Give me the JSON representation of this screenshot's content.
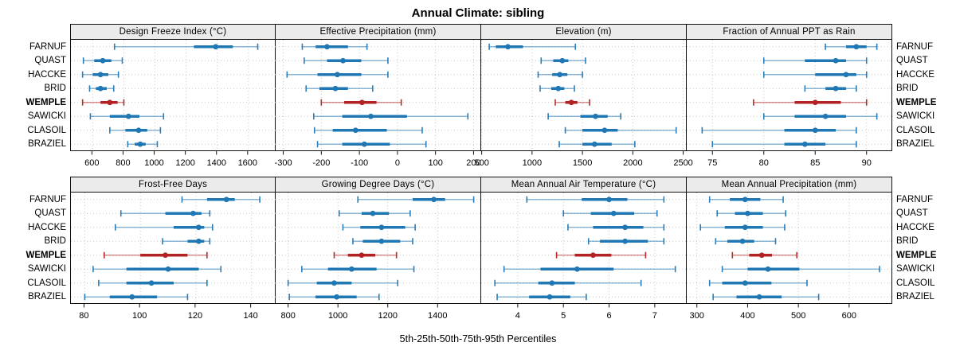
{
  "title": "Annual Climate: sibling",
  "footer": "5th-25th-50th-75th-95th Percentiles",
  "stations": [
    "FARNUF",
    "QUAST",
    "HACCKE",
    "BRID",
    "WEMPLE",
    "SAWICKI",
    "CLASOIL",
    "BRAZIEL"
  ],
  "highlight_station": "WEMPLE",
  "colors": {
    "series": "#1f77b4",
    "highlight": "#b22222",
    "strip_bg": "#ebebeb",
    "grid": "#c8c8c8",
    "border": "#111111"
  },
  "chart_data": {
    "type": "percentile-dotplot",
    "percentile_labels": [
      "5th",
      "25th",
      "50th",
      "75th",
      "95th"
    ],
    "rows": [
      "FARNUF",
      "QUAST",
      "HACCKE",
      "BRID",
      "WEMPLE",
      "SAWICKI",
      "CLASOIL",
      "BRAZIEL"
    ],
    "legend_position": "none",
    "grid": true,
    "panels": [
      {
        "title": "Design Freeze Index (°C)",
        "xlim": [
          460,
          1780
        ],
        "ticks": [
          600,
          800,
          1000,
          1200,
          1400,
          1600
        ],
        "values": {
          "FARNUF": [
            740,
            1250,
            1390,
            1500,
            1660
          ],
          "QUAST": [
            540,
            610,
            665,
            720,
            790
          ],
          "HACCKE": [
            535,
            600,
            650,
            700,
            765
          ],
          "BRID": [
            580,
            620,
            650,
            690,
            735
          ],
          "WEMPLE": [
            535,
            650,
            710,
            760,
            800
          ],
          "SAWICKI": [
            585,
            710,
            830,
            900,
            1055
          ],
          "CLASOIL": [
            710,
            810,
            895,
            950,
            1035
          ],
          "BRAZIEL": [
            825,
            870,
            905,
            940,
            1015
          ]
        }
      },
      {
        "title": "Effective Precipitation (mm)",
        "xlim": [
          -320,
          220
        ],
        "ticks": [
          -300,
          -200,
          -100,
          0,
          100,
          200
        ],
        "values": {
          "FARNUF": [
            -250,
            -215,
            -185,
            -130,
            -80
          ],
          "QUAST": [
            -245,
            -185,
            -143,
            -95,
            -25
          ],
          "HACCKE": [
            -290,
            -210,
            -158,
            -95,
            -25
          ],
          "BRID": [
            -240,
            -205,
            -163,
            -130,
            -65
          ],
          "WEMPLE": [
            -200,
            -140,
            -93,
            -55,
            10
          ],
          "SAWICKI": [
            -220,
            -145,
            -70,
            25,
            185
          ],
          "CLASOIL": [
            -218,
            -170,
            -110,
            -28,
            65
          ],
          "BRAZIEL": [
            -210,
            -145,
            -87,
            -20,
            75
          ]
        }
      },
      {
        "title": "Elevation (m)",
        "xlim": [
          495,
          2535
        ],
        "ticks": [
          500,
          1000,
          1500,
          2000,
          2500
        ],
        "values": {
          "FARNUF": [
            575,
            640,
            760,
            910,
            1430
          ],
          "QUAST": [
            1090,
            1210,
            1300,
            1360,
            1530
          ],
          "HACCKE": [
            1060,
            1200,
            1275,
            1350,
            1500
          ],
          "BRID": [
            1080,
            1190,
            1260,
            1320,
            1420
          ],
          "WEMPLE": [
            1230,
            1330,
            1390,
            1450,
            1570
          ],
          "SAWICKI": [
            1160,
            1480,
            1630,
            1750,
            1880
          ],
          "CLASOIL": [
            1330,
            1500,
            1720,
            1850,
            2430
          ],
          "BRAZIEL": [
            1270,
            1500,
            1620,
            1790,
            2020
          ]
        }
      },
      {
        "title": "Fraction of Annual PPT as Rain",
        "xlim": [
          72.5,
          92.5
        ],
        "ticks": [
          75,
          80,
          85,
          90
        ],
        "values": {
          "FARNUF": [
            86,
            88,
            89,
            90,
            91
          ],
          "QUAST": [
            80,
            84,
            87,
            88,
            90
          ],
          "HACCKE": [
            80,
            85,
            88,
            89,
            90
          ],
          "BRID": [
            84,
            86,
            87,
            88,
            89
          ],
          "WEMPLE": [
            79,
            83,
            85,
            87.5,
            90
          ],
          "SAWICKI": [
            80,
            83,
            86,
            88,
            91
          ],
          "CLASOIL": [
            74,
            82,
            85,
            87,
            89
          ],
          "BRAZIEL": [
            75,
            82,
            84,
            86,
            89
          ]
        }
      },
      {
        "title": "Frost-Free Days",
        "xlim": [
          75,
          149
        ],
        "ticks": [
          80,
          100,
          120,
          140
        ],
        "values": {
          "FARNUF": [
            115,
            124,
            131,
            134,
            143
          ],
          "QUAST": [
            93,
            109,
            119,
            122,
            125
          ],
          "HACCKE": [
            91,
            112,
            121,
            123,
            126
          ],
          "BRID": [
            108,
            117,
            121,
            123,
            125
          ],
          "WEMPLE": [
            87,
            100,
            109,
            117,
            124
          ],
          "SAWICKI": [
            83,
            95,
            110,
            121,
            129
          ],
          "CLASOIL": [
            85,
            95,
            104,
            112,
            124
          ],
          "BRAZIEL": [
            80,
            89,
            97,
            106,
            117
          ]
        }
      },
      {
        "title": "Growing Degree Days (°C)",
        "xlim": [
          750,
          1575
        ],
        "ticks": [
          800,
          1000,
          1200,
          1400
        ],
        "values": {
          "FARNUF": [
            1080,
            1300,
            1385,
            1430,
            1545
          ],
          "QUAST": [
            1005,
            1095,
            1140,
            1205,
            1290
          ],
          "HACCKE": [
            1020,
            1090,
            1175,
            1270,
            1310
          ],
          "BRID": [
            1060,
            1100,
            1175,
            1250,
            1300
          ],
          "WEMPLE": [
            985,
            1040,
            1095,
            1150,
            1235
          ],
          "SAWICKI": [
            855,
            960,
            1055,
            1155,
            1305
          ],
          "CLASOIL": [
            800,
            915,
            985,
            1055,
            1240
          ],
          "BRAZIEL": [
            805,
            910,
            995,
            1075,
            1165
          ]
        }
      },
      {
        "title": "Mean Annual Air Temperature (°C)",
        "xlim": [
          3.2,
          7.7
        ],
        "ticks": [
          4,
          5,
          6,
          7
        ],
        "values": {
          "FARNUF": [
            4.2,
            5.4,
            6.0,
            6.4,
            7.2
          ],
          "QUAST": [
            5.0,
            5.6,
            6.1,
            6.55,
            7.05
          ],
          "HACCKE": [
            5.1,
            5.65,
            6.35,
            6.75,
            7.2
          ],
          "BRID": [
            5.55,
            5.8,
            6.35,
            6.85,
            7.2
          ],
          "WEMPLE": [
            4.85,
            5.25,
            5.65,
            6.05,
            6.8
          ],
          "SAWICKI": [
            3.7,
            4.5,
            5.3,
            6.1,
            7.45
          ],
          "CLASOIL": [
            3.5,
            4.45,
            4.75,
            5.25,
            6.7
          ],
          "BRAZIEL": [
            3.55,
            4.25,
            4.7,
            5.15,
            5.5
          ]
        }
      },
      {
        "title": "Mean Annual Precipitation (mm)",
        "xlim": [
          280,
          685
        ],
        "ticks": [
          300,
          400,
          500,
          600
        ],
        "values": {
          "FARNUF": [
            325,
            365,
            395,
            425,
            470
          ],
          "QUAST": [
            340,
            375,
            400,
            430,
            475
          ],
          "HACCKE": [
            307,
            355,
            395,
            430,
            473
          ],
          "BRID": [
            337,
            360,
            390,
            413,
            455
          ],
          "WEMPLE": [
            370,
            403,
            428,
            448,
            497
          ],
          "SAWICKI": [
            350,
            400,
            440,
            502,
            660
          ],
          "CLASOIL": [
            325,
            350,
            395,
            447,
            517
          ],
          "BRAZIEL": [
            332,
            378,
            423,
            467,
            540
          ]
        }
      }
    ]
  }
}
